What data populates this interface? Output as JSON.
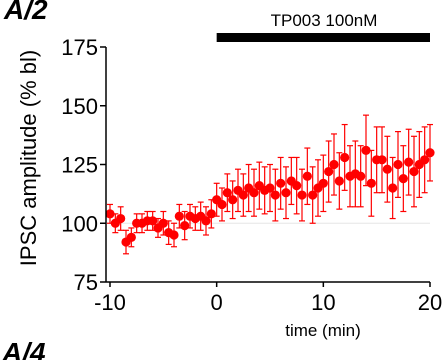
{
  "panel_label": "A/2",
  "next_panel_label": "A/4",
  "chart_data": {
    "type": "scatter",
    "title": "",
    "xlabel": "time (min)",
    "ylabel": "IPSC amplitude (% bl)",
    "xlim": [
      -10,
      20
    ],
    "ylim": [
      75,
      175
    ],
    "xticks": [
      "-10",
      "0",
      "10",
      "20"
    ],
    "yticks": [
      "75",
      "100",
      "125",
      "150",
      "175"
    ],
    "baseline": 100,
    "drug_bar": {
      "label": "TP003 100nM",
      "start": 0,
      "end": 20
    },
    "marker_color": "#ff0000",
    "x": [
      -10,
      -9.5,
      -9,
      -8.5,
      -8,
      -7.5,
      -7,
      -6.5,
      -6,
      -5.5,
      -5,
      -4.5,
      -4,
      -3.5,
      -3,
      -2.5,
      -2,
      -1.5,
      -1,
      -0.5,
      0,
      0.5,
      1,
      1.5,
      2,
      2.5,
      3,
      3.5,
      4,
      4.5,
      5,
      5.5,
      6,
      6.5,
      7,
      7.5,
      8,
      8.5,
      9,
      9.5,
      10,
      10.5,
      11,
      11.5,
      12,
      12.5,
      13,
      13.5,
      14,
      14.5,
      15,
      15.5,
      16,
      16.5,
      17,
      17.5,
      18,
      18.5,
      19,
      19.5,
      20
    ],
    "y": [
      104,
      100,
      102,
      92,
      94,
      100,
      100,
      101,
      101,
      98,
      100,
      96,
      95,
      103,
      99,
      103,
      102,
      103,
      101,
      104,
      110,
      108,
      113,
      110,
      114,
      112,
      115,
      113,
      116,
      114,
      115,
      112,
      117,
      113,
      118,
      116,
      112,
      120,
      112,
      115,
      117,
      122,
      125,
      118,
      128,
      120,
      121,
      120,
      131,
      117,
      127,
      127,
      123,
      115,
      125,
      119,
      126,
      122,
      125,
      127,
      130
    ],
    "err": [
      4,
      4,
      5,
      5,
      4,
      4,
      4,
      4,
      4,
      4,
      5,
      5,
      5,
      5,
      6,
      5,
      5,
      6,
      6,
      6,
      7,
      7,
      8,
      8,
      9,
      9,
      10,
      10,
      10,
      10,
      10,
      11,
      11,
      11,
      10,
      12,
      11,
      12,
      12,
      12,
      12,
      13,
      13,
      12,
      14,
      13,
      14,
      13,
      15,
      14,
      14,
      14,
      14,
      13,
      14,
      14,
      14,
      15,
      14,
      14,
      12
    ]
  }
}
